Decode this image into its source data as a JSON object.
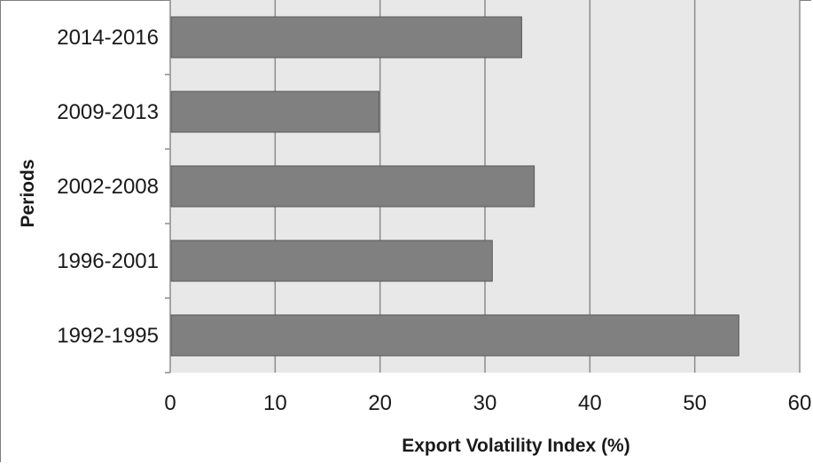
{
  "chart_data": {
    "type": "bar",
    "orientation": "horizontal",
    "categories": [
      "2014-2016",
      "2009-2013",
      "2002-2008",
      "1996-2001",
      "1992-1995"
    ],
    "values": [
      33.5,
      19.9,
      34.7,
      30.7,
      54.2
    ],
    "xlabel": "Export Volatility Index (%)",
    "ylabel": "Periods",
    "xlim": [
      0,
      60
    ],
    "xticks": [
      "0",
      "10",
      "20",
      "30",
      "40",
      "50",
      "60"
    ],
    "grid": "vertical",
    "legend": "none",
    "colors": {
      "bar_fill": "#808080",
      "bar_stroke": "#595959",
      "plot_background": "#e8e8e8",
      "grid": "#8c8c8c"
    }
  }
}
